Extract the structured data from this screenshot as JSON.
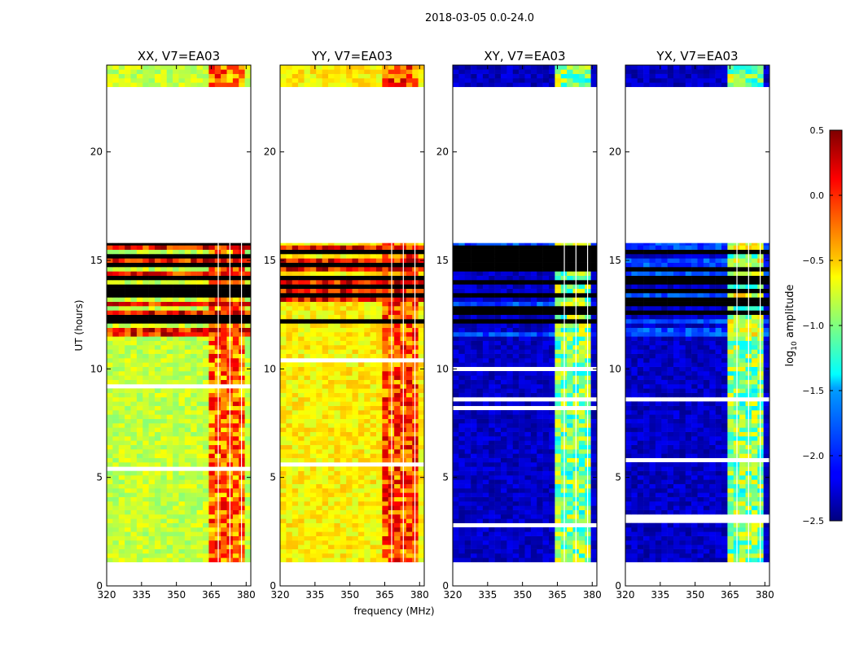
{
  "figure_title": "2018-03-05 0.0-24.0",
  "colorbar": {
    "label_main": "log",
    "label_sub": "10",
    "label_rest": " amplitude",
    "range": [
      -2.5,
      0.5
    ],
    "ticks": [
      "0.5",
      "0.0",
      "−0.5",
      "−1.0",
      "−1.5",
      "−2.0",
      "−2.5"
    ],
    "tick_values": [
      0.5,
      0.0,
      -0.5,
      -1.0,
      -1.5,
      -2.0,
      -2.5
    ],
    "colormap": "jet"
  },
  "chart_data": [
    {
      "type": "heatmap",
      "title": "XX, V7=EA03",
      "xlabel": "",
      "ylabel": "UT (hours)",
      "xlim": [
        320,
        382
      ],
      "ylim": [
        0,
        24
      ],
      "xticks": [
        "320",
        "335",
        "350",
        "365",
        "380"
      ],
      "xtick_values": [
        320,
        335,
        350,
        365,
        380
      ],
      "yticks": [
        "0",
        "5",
        "10",
        "15",
        "20"
      ],
      "ytick_values": [
        0,
        5,
        10,
        15,
        20
      ],
      "data_time_ranges_hours": [
        [
          1.1,
          15.8
        ],
        [
          23.0,
          24.0
        ]
      ],
      "base_level": -0.8,
      "band_level": -0.2
    },
    {
      "type": "heatmap",
      "title": "YY, V7=EA03",
      "xlabel": "frequency (MHz)",
      "ylabel": "",
      "xlim": [
        320,
        382
      ],
      "ylim": [
        0,
        24
      ],
      "xticks": [
        "320",
        "335",
        "350",
        "365",
        "380"
      ],
      "xtick_values": [
        320,
        335,
        350,
        365,
        380
      ],
      "yticks": [
        "0",
        "5",
        "10",
        "15",
        "20"
      ],
      "ytick_values": [
        0,
        5,
        10,
        15,
        20
      ],
      "data_time_ranges_hours": [
        [
          1.1,
          15.8
        ],
        [
          23.0,
          24.0
        ]
      ],
      "base_level": -0.6,
      "band_level": -0.1
    },
    {
      "type": "heatmap",
      "title": "XY, V7=EA03",
      "xlabel": "",
      "ylabel": "",
      "xlim": [
        320,
        382
      ],
      "ylim": [
        0,
        24
      ],
      "xticks": [
        "320",
        "335",
        "350",
        "365",
        "380"
      ],
      "xtick_values": [
        320,
        335,
        350,
        365,
        380
      ],
      "yticks": [
        "0",
        "5",
        "10",
        "15",
        "20"
      ],
      "ytick_values": [
        0,
        5,
        10,
        15,
        20
      ],
      "data_time_ranges_hours": [
        [
          1.1,
          15.8
        ],
        [
          23.0,
          24.0
        ]
      ],
      "base_level": -2.3,
      "band_level": -1.0
    },
    {
      "type": "heatmap",
      "title": "YX, V7=EA03",
      "xlabel": "",
      "ylabel": "",
      "xlim": [
        320,
        382
      ],
      "ylim": [
        0,
        24
      ],
      "xticks": [
        "320",
        "335",
        "350",
        "365",
        "380"
      ],
      "xtick_values": [
        320,
        335,
        350,
        365,
        380
      ],
      "yticks": [
        "0",
        "5",
        "10",
        "15",
        "20"
      ],
      "ytick_values": [
        0,
        5,
        10,
        15,
        20
      ],
      "data_time_ranges_hours": [
        [
          1.1,
          15.8
        ],
        [
          23.0,
          24.0
        ]
      ],
      "base_level": -2.3,
      "band_level": -1.0
    }
  ]
}
